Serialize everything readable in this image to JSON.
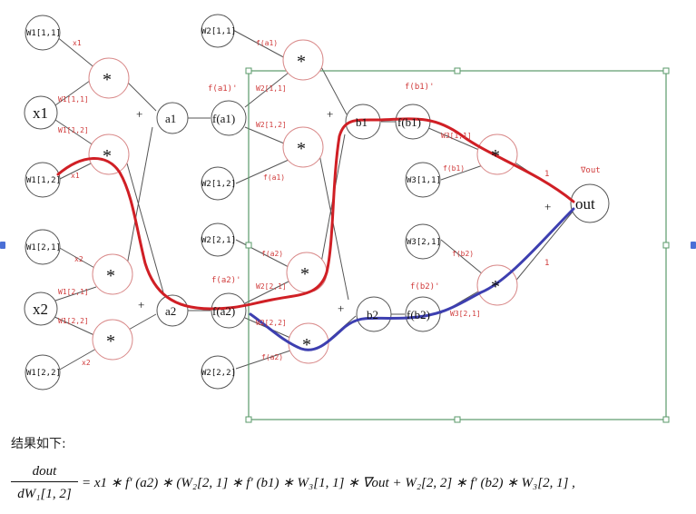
{
  "diagram": {
    "nodes": {
      "w1_11": "W1[1,1]",
      "w1_12": "W1[1,2]",
      "w1_21": "W1[2,1]",
      "w1_22": "W1[2,2]",
      "x1": "x1",
      "x2": "x2",
      "mul": "*",
      "a1": "a1",
      "a2": "a2",
      "fa1": "f(a1)",
      "fa2": "f(a2)",
      "w2_11": "W2[1,1]",
      "w2_12": "W2[1,2]",
      "w2_21": "W2[2,1]",
      "w2_22": "W2[2,2]",
      "b1": "b1",
      "b2": "b2",
      "fb1": "f(b1)",
      "fb2": "f(b2)",
      "w3_11": "W3[1,1]",
      "w3_21": "W3[2,1]",
      "out": "out"
    },
    "edge_labels": {
      "x1": "x1",
      "w1_11": "W1[1,1]",
      "w1_12": "W1[1,2]",
      "x1b": "x1",
      "x2": "x2",
      "w1_21": "W1[2,1]",
      "w1_22": "W1[2,2]",
      "x2b": "x2",
      "fa1": "f(a1)",
      "w2_11": "W2[1,1]",
      "w2_12": "W2[1,2]",
      "fa1b": "f(a1)",
      "fa2": "f(a2)",
      "w2_21": "W2[2,1]",
      "w2_22": "W2[2,2]",
      "fa2b": "f(a2)",
      "fb1": "f(b1)",
      "w3_11": "W3[1,1]",
      "fb2": "f(b2)",
      "w3_21": "W3[2,1]",
      "one": "1",
      "one2": "1",
      "fa1_prime": "f(a1)'",
      "fa2_prime": "f(a2)'",
      "fb1_prime": "f(b1)'",
      "fb2_prime": "f(b2)'",
      "nabla_out": "∇out",
      "plus": "+"
    }
  },
  "caption": "结果如下:",
  "formula": {
    "numerator": "dout",
    "denominator": "dW₁[1, 2]",
    "rhs": "= x1 ∗ f′ (a2) ∗ (W₂[2, 1] ∗ f′ (b1) ∗ W₃[1, 1] ∗ ∇out + W₂[2, 2] ∗ f′ (b2) ∗ W₃[2, 1] ,"
  },
  "colors": {
    "red_path": "#d01f25",
    "blue_path": "#3d3fb0",
    "selection_box": "#5a9a6a",
    "handle": "#4a6fd6"
  }
}
